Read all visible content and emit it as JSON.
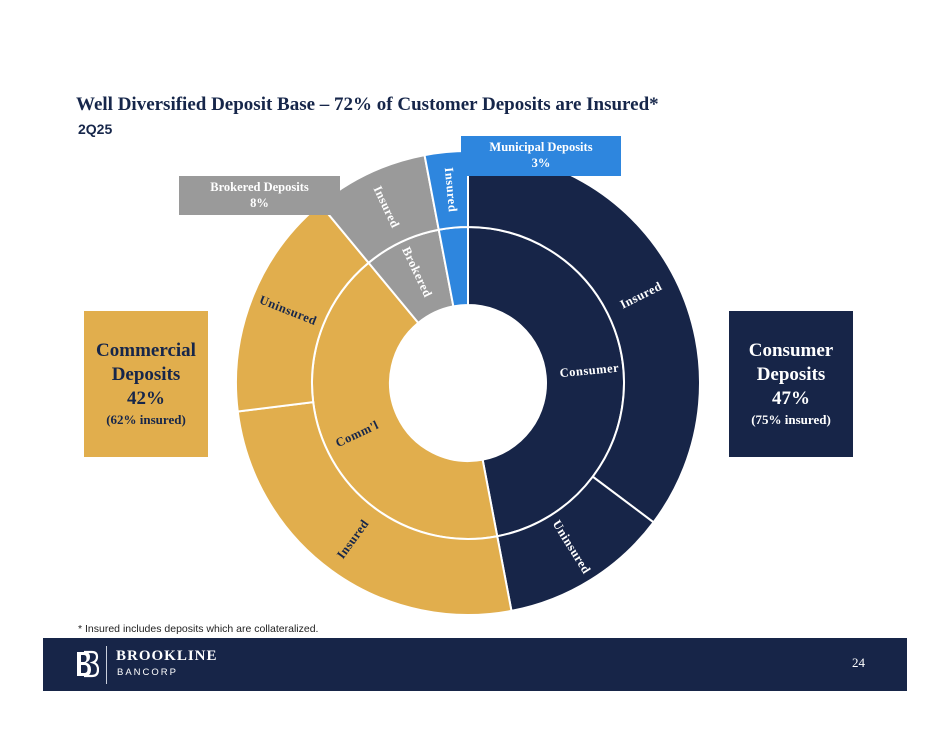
{
  "title": "Well Diversified Deposit Base – 72% of Customer Deposits are Insured*",
  "subtitle": "2Q25",
  "callouts": {
    "brokered": {
      "line1": "Brokered Deposits",
      "line2": "8%"
    },
    "municipal": {
      "line1": "Municipal Deposits",
      "line2": "3%"
    },
    "commercial": {
      "line1": "Commercial",
      "line2": "Deposits",
      "line3": "42%",
      "line4": "(62% insured)"
    },
    "consumer": {
      "line1": "Consumer",
      "line2": "Deposits",
      "line3": "47%",
      "line4": "(75% insured)"
    }
  },
  "colors": {
    "consumer": "#172548",
    "commercial": "#e1ae4d",
    "brokered": "#9a9a9a",
    "municipal": "#2e86de",
    "divider": "#ffffff"
  },
  "chart_data": {
    "type": "sunburst",
    "inner": [
      {
        "label": "Consumer",
        "value": 47,
        "color": "consumer"
      },
      {
        "label": "Comm'l",
        "value": 42,
        "color": "commercial"
      },
      {
        "label": "Brokered",
        "value": 8,
        "color": "brokered"
      },
      {
        "label": "",
        "value": 3,
        "color": "municipal"
      }
    ],
    "outer": [
      {
        "label": "Insured",
        "value": 35.25,
        "color": "consumer"
      },
      {
        "label": "Uninsured",
        "value": 11.75,
        "color": "consumer"
      },
      {
        "label": "Insured",
        "value": 26.04,
        "color": "commercial"
      },
      {
        "label": "Uninsured",
        "value": 15.96,
        "color": "commercial"
      },
      {
        "label": "Insured",
        "value": 8,
        "color": "brokered"
      },
      {
        "label": "Insured",
        "value": 3,
        "color": "municipal"
      }
    ]
  },
  "footnote": "* Insured includes deposits which are collateralized.",
  "footer": {
    "brand": "BROOKLINE",
    "brand_sub": "BANCORP",
    "page": "24"
  }
}
